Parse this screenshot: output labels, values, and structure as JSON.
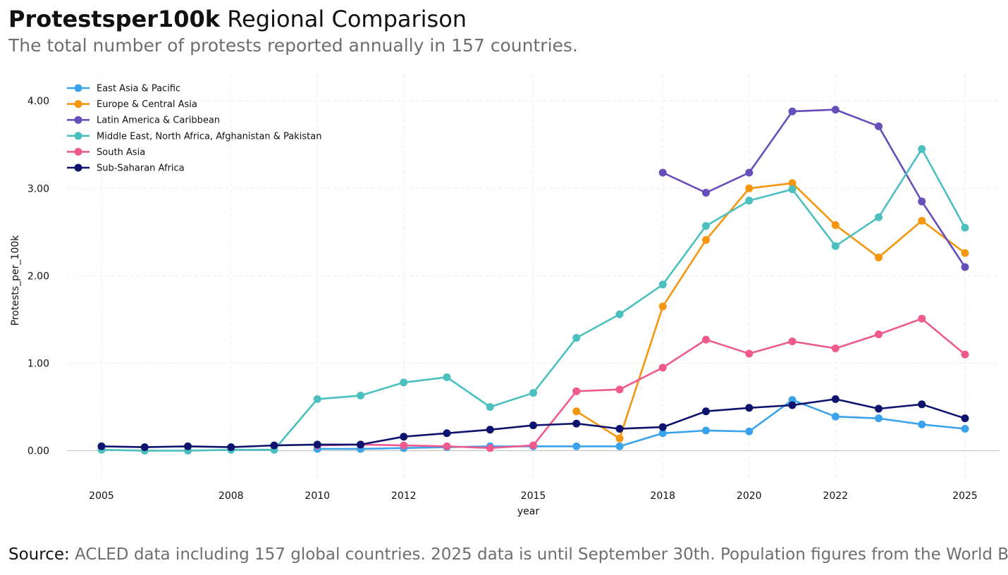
{
  "header": {
    "title_bold": "Protestsper100k",
    "title_rest": " Regional Comparison",
    "subtitle": "The total number of protests reported annually in 157 countries."
  },
  "footer": {
    "source_label": "Source:",
    "source_text": " ACLED data including 157 global countries. 2025 data is until September 30th. Population figures from the World Bank."
  },
  "chart_data": {
    "type": "line",
    "title": "Protestsper100k Regional Comparison",
    "xlabel": "year",
    "ylabel": "Protests_per_100k",
    "xlim": [
      2004.2,
      2025.8
    ],
    "ylim": [
      -0.35,
      4.3
    ],
    "xticks": [
      2005,
      2008,
      2010,
      2012,
      2015,
      2018,
      2020,
      2022,
      2025
    ],
    "yticks": [
      0,
      1,
      2,
      3,
      4
    ],
    "ytick_labels": [
      "0.00",
      "1.00",
      "2.00",
      "3.00",
      "4.00"
    ],
    "grid": true,
    "legend_position": "top-left",
    "series": [
      {
        "name": "East Asia & Pacific",
        "color": "#3BA3EA",
        "x": [
          2010,
          2011,
          2012,
          2013,
          2014,
          2015,
          2016,
          2017,
          2018,
          2019,
          2020,
          2021,
          2022,
          2023,
          2024,
          2025
        ],
        "y": [
          0.02,
          0.02,
          0.03,
          0.04,
          0.05,
          0.05,
          0.05,
          0.05,
          0.2,
          0.23,
          0.22,
          0.58,
          0.39,
          0.37,
          0.3,
          0.25
        ]
      },
      {
        "name": "Europe & Central Asia",
        "color": "#F6960F",
        "x": [
          2016,
          2017,
          2018,
          2019,
          2020,
          2021,
          2022,
          2023,
          2024,
          2025
        ],
        "y": [
          0.45,
          0.14,
          1.65,
          2.41,
          3.0,
          3.06,
          2.58,
          2.21,
          2.63,
          2.26
        ]
      },
      {
        "name": "Latin America & Caribbean",
        "color": "#674EBA",
        "x": [
          2018,
          2019,
          2020,
          2021,
          2022,
          2023,
          2024,
          2025
        ],
        "y": [
          3.18,
          2.95,
          3.18,
          3.88,
          3.9,
          3.71,
          2.85,
          2.1
        ]
      },
      {
        "name": "Middle East, North Africa, Afghanistan & Pakistan",
        "color": "#4CBFBF",
        "x": [
          2005,
          2006,
          2007,
          2008,
          2009,
          2010,
          2011,
          2012,
          2013,
          2014,
          2015,
          2016,
          2017,
          2018,
          2019,
          2020,
          2021,
          2022,
          2023,
          2024,
          2025
        ],
        "y": [
          0.01,
          0.0,
          0.0,
          0.01,
          0.01,
          0.59,
          0.63,
          0.78,
          0.84,
          0.5,
          0.66,
          1.29,
          1.56,
          1.9,
          2.57,
          2.86,
          2.99,
          2.34,
          2.67,
          3.45,
          2.55
        ]
      },
      {
        "name": "South Asia",
        "color": "#EE5A8E",
        "x": [
          2010,
          2011,
          2012,
          2013,
          2014,
          2015,
          2016,
          2017,
          2018,
          2019,
          2020,
          2021,
          2022,
          2023,
          2024,
          2025
        ],
        "y": [
          0.06,
          0.07,
          0.06,
          0.05,
          0.03,
          0.06,
          0.68,
          0.7,
          0.95,
          1.27,
          1.11,
          1.25,
          1.17,
          1.33,
          1.51,
          1.1
        ]
      },
      {
        "name": "Sub-Saharan Africa",
        "color": "#0E136E",
        "x": [
          2005,
          2006,
          2007,
          2008,
          2009,
          2010,
          2011,
          2012,
          2013,
          2014,
          2015,
          2016,
          2017,
          2018,
          2019,
          2020,
          2021,
          2022,
          2023,
          2024,
          2025
        ],
        "y": [
          0.05,
          0.04,
          0.05,
          0.04,
          0.06,
          0.07,
          0.07,
          0.16,
          0.2,
          0.24,
          0.29,
          0.31,
          0.25,
          0.27,
          0.45,
          0.49,
          0.52,
          0.59,
          0.48,
          0.53,
          0.37
        ]
      }
    ]
  }
}
